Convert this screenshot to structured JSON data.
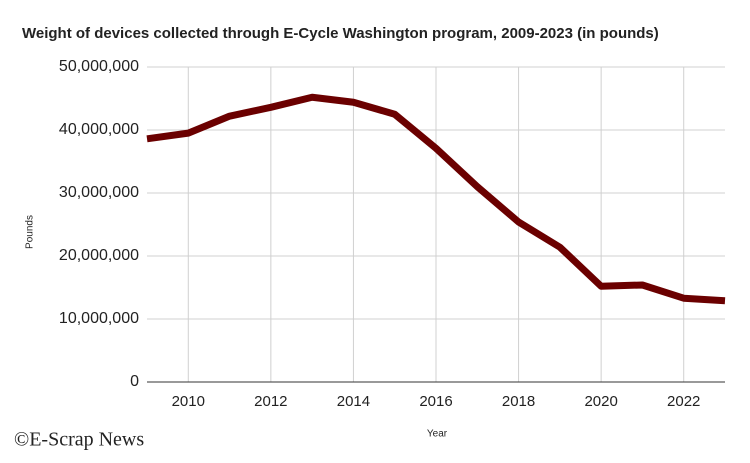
{
  "chart_data": {
    "type": "line",
    "title": "Weight of devices collected through E-Cycle Washington program, 2009-2023 (in pounds)",
    "x_label": "Year",
    "y_label": "Pounds",
    "watermark": "©E-Scrap News",
    "x": [
      2009,
      2010,
      2011,
      2012,
      2013,
      2014,
      2015,
      2016,
      2017,
      2018,
      2019,
      2020,
      2021,
      2022,
      2023
    ],
    "series": [
      {
        "name": "Pounds",
        "color": "#6b0000",
        "values": [
          38600000,
          39500000,
          42200000,
          43600000,
          45200000,
          44400000,
          42500000,
          37100000,
          31000000,
          25400000,
          21400000,
          15200000,
          15400000,
          13300000,
          12900000
        ]
      }
    ],
    "xlim": [
      2009,
      2023
    ],
    "xticks": [
      2010,
      2012,
      2014,
      2016,
      2018,
      2020,
      2022
    ],
    "ylim": [
      0,
      50000000
    ],
    "yticks": [
      0,
      {
        "value": 10000000,
        "label": "10,000,000"
      },
      {
        "value": 20000000,
        "label": "20,000,000"
      },
      {
        "value": 30000000,
        "label": "30,000,000"
      },
      {
        "value": 40000000,
        "label": "40,000,000"
      },
      {
        "value": 50000000,
        "label": "50,000,000"
      }
    ],
    "grid": true
  }
}
